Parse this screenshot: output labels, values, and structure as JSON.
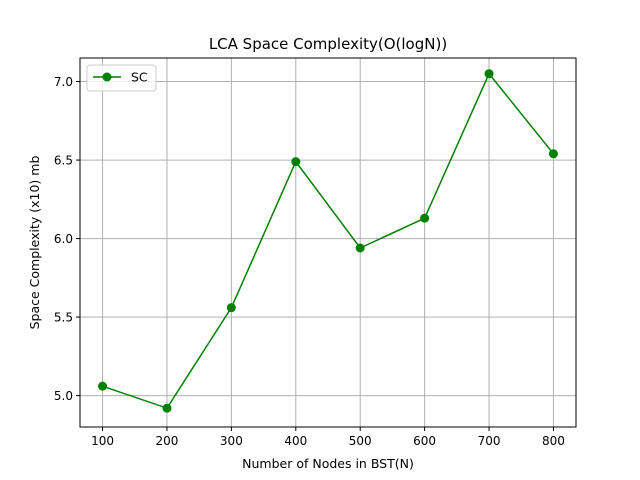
{
  "chart_data": {
    "type": "line",
    "title": "LCA Space Complexity(O(logN))",
    "xlabel": "Number of Nodes in BST(N)",
    "ylabel": "Space Complexity (x10) mb",
    "x": [
      100,
      200,
      300,
      400,
      500,
      600,
      700,
      800
    ],
    "series": [
      {
        "name": "SC",
        "color": "#008000",
        "marker": "circle",
        "values": [
          5.06,
          4.92,
          5.56,
          6.49,
          5.94,
          6.13,
          7.05,
          6.54
        ]
      }
    ],
    "xlim": [
      65,
      835
    ],
    "ylim": [
      4.8,
      7.15
    ],
    "xticks": [
      100,
      200,
      300,
      400,
      500,
      600,
      700,
      800
    ],
    "xtick_labels": [
      "100",
      "200",
      "300",
      "400",
      "500",
      "600",
      "700",
      "800"
    ],
    "yticks": [
      5.0,
      5.5,
      6.0,
      6.5,
      7.0
    ],
    "ytick_labels": [
      "5.0",
      "5.5",
      "6.0",
      "6.5",
      "7.0"
    ],
    "grid": true,
    "legend_position": "top-left"
  }
}
